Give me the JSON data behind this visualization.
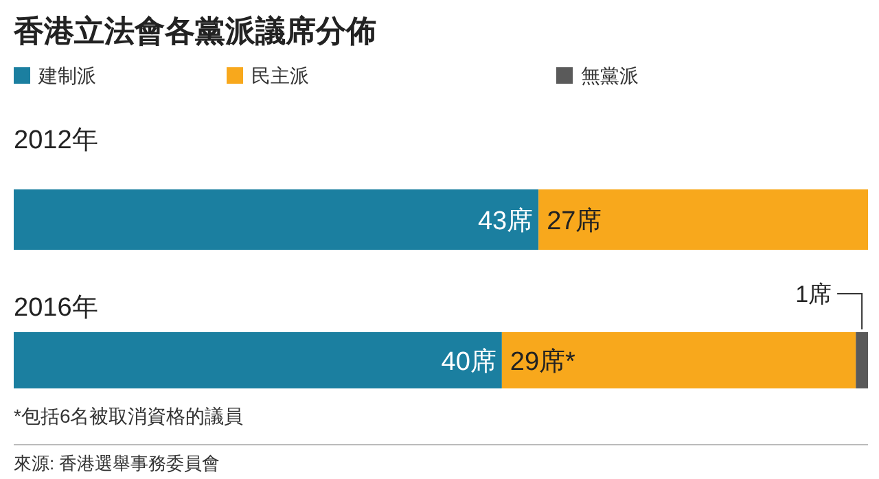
{
  "chart_data": [
    {
      "type": "bar",
      "orientation": "horizontal",
      "stacked": true,
      "title": "香港立法會各黨派議席分佈",
      "subtitle": "2012年",
      "legend": "top left",
      "categories": [
        null
      ],
      "series": [
        {
          "name": "建制派",
          "color": "#1b7fa0",
          "values": [
            43
          ],
          "value_labels": [
            "43席"
          ]
        },
        {
          "name": "民主派",
          "color": "#f8a81c",
          "values": [
            27
          ],
          "value_labels": [
            "27席"
          ]
        },
        {
          "name": "無黨派",
          "color": "#5a5a5a",
          "values": [
            null
          ],
          "value_labels": [
            null
          ]
        }
      ]
    },
    {
      "type": "bar",
      "orientation": "horizontal",
      "stacked": true,
      "title": "2016年",
      "categories": [
        null
      ],
      "series": [
        {
          "color": "#1b7fa0",
          "values": [
            40
          ],
          "value_labels": [
            "40席"
          ]
        },
        {
          "color": "#f8a81c",
          "values": [
            29
          ],
          "value_labels": [
            "29席*"
          ]
        },
        {
          "color": "#5a5a5a",
          "values": [
            1
          ],
          "value_labels": [
            "1席"
          ]
        }
      ],
      "annotations": [
        "*包括6名被取消資格的議員",
        "來源: 香港選舉事務委員會"
      ]
    }
  ]
}
